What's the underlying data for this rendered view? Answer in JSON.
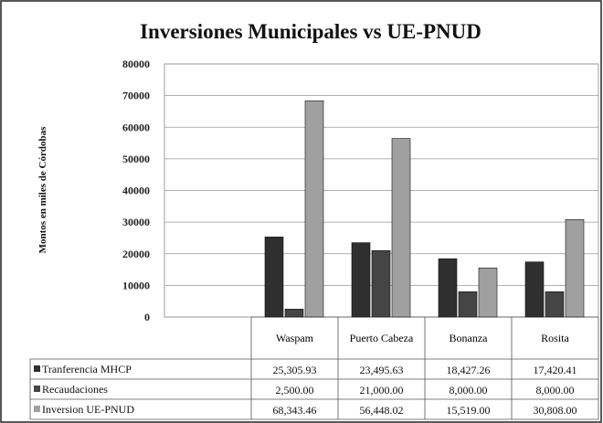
{
  "chart_data": {
    "type": "bar",
    "title": "Inversiones Municipales vs UE-PNUD",
    "y_label": "Montos en miles de Córdobas",
    "categories": [
      "Waspam",
      "Puerto Cabeza",
      "Bonanza",
      "Rosita"
    ],
    "series": [
      {
        "name": "Tranferencia MHCP",
        "color": "#2f2f2f",
        "values": [
          25305.93,
          23495.63,
          18427.26,
          17420.41
        ],
        "value_labels": [
          "25,305.93",
          "23,495.63",
          "18,427.26",
          "17,420.41"
        ]
      },
      {
        "name": "Recaudaciones",
        "color": "#454545",
        "values": [
          2500,
          21000,
          8000,
          8000
        ],
        "value_labels": [
          "2,500.00",
          "21,000.00",
          "8,000.00",
          "8,000.00"
        ]
      },
      {
        "name": "Inversion UE-PNUD",
        "color": "#a0a0a0",
        "values": [
          68343.46,
          56448.02,
          15519,
          30808
        ],
        "value_labels": [
          "68,343.46",
          "56,448.02",
          "15,519.00",
          "30,808.00"
        ]
      }
    ],
    "ylim": [
      0,
      80000
    ],
    "yticks": [
      0,
      10000,
      20000,
      30000,
      40000,
      50000,
      60000,
      70000,
      80000
    ],
    "grid": true
  }
}
